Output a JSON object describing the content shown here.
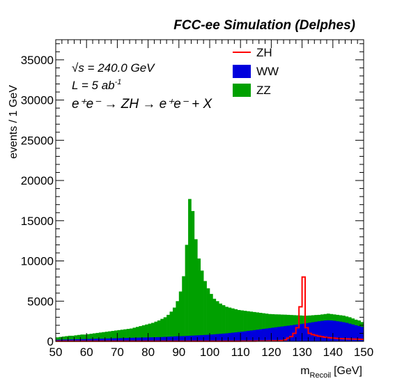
{
  "chart_data": {
    "type": "histogram",
    "title": "FCC-ee Simulation (Delphes)",
    "xlabel_main": "m",
    "xlabel_sub": "Recoil",
    "xlabel_unit": "[GeV]",
    "ylabel": "events / 1 GeV",
    "xlim": [
      50,
      150
    ],
    "ylim": [
      0,
      37500
    ],
    "x_ticks": [
      50,
      60,
      70,
      80,
      90,
      100,
      110,
      120,
      130,
      140,
      150
    ],
    "y_ticks": [
      0,
      5000,
      10000,
      15000,
      20000,
      25000,
      30000,
      35000
    ],
    "info": {
      "sqrt_s": "√s = 240.0 GeV",
      "lumi_base": "L = 5 ab",
      "lumi_exp": "-1",
      "process": "e⁺e⁻ → ZH → e⁺e⁻ + X"
    },
    "legend": {
      "placement": "top-right",
      "entries": [
        {
          "name": "ZH",
          "style": "line",
          "color": "#ff0000"
        },
        {
          "name": "WW",
          "style": "fill",
          "color": "#0000dd"
        },
        {
          "name": "ZZ",
          "style": "fill",
          "color": "#00a000"
        }
      ]
    },
    "colors": {
      "ZH": "#ff0000",
      "WW": "#0000dd",
      "ZZ": "#00a000"
    },
    "bin_width": 1,
    "bin_edges_start": 50,
    "series": [
      {
        "name": "WW",
        "stack": "WW",
        "values": [
          200,
          210,
          220,
          230,
          240,
          250,
          260,
          270,
          280,
          290,
          300,
          310,
          320,
          330,
          340,
          350,
          360,
          370,
          380,
          390,
          400,
          410,
          420,
          430,
          440,
          450,
          460,
          470,
          480,
          490,
          500,
          510,
          520,
          530,
          540,
          560,
          580,
          600,
          620,
          640,
          650,
          660,
          680,
          700,
          720,
          740,
          760,
          780,
          800,
          820,
          850,
          880,
          910,
          940,
          970,
          1000,
          1040,
          1080,
          1120,
          1160,
          1200,
          1250,
          1300,
          1350,
          1400,
          1450,
          1500,
          1550,
          1600,
          1650,
          1700,
          1750,
          1800,
          1850,
          1900,
          1950,
          2000,
          2050,
          2100,
          2150,
          2200,
          2260,
          2320,
          2380,
          2440,
          2500,
          2550,
          2600,
          2620,
          2600,
          2560,
          2500,
          2450,
          2380,
          2300,
          2200,
          2100,
          2000,
          1900,
          1800
        ]
      },
      {
        "name": "ZZ",
        "stack": "WW+ZZ total",
        "values": [
          500,
          550,
          600,
          650,
          700,
          700,
          750,
          800,
          850,
          850,
          900,
          950,
          1000,
          1050,
          1100,
          1150,
          1200,
          1250,
          1300,
          1350,
          1400,
          1450,
          1500,
          1550,
          1600,
          1700,
          1800,
          1900,
          2000,
          2100,
          2200,
          2300,
          2450,
          2600,
          2800,
          3000,
          3300,
          3700,
          4200,
          5000,
          6200,
          8100,
          12000,
          17700,
          16200,
          12700,
          10300,
          8800,
          7500,
          6600,
          5900,
          5300,
          5000,
          4700,
          4500,
          4300,
          4200,
          4100,
          4000,
          3900,
          3850,
          3800,
          3750,
          3700,
          3650,
          3600,
          3550,
          3500,
          3450,
          3400,
          3380,
          3360,
          3350,
          3330,
          3320,
          3300,
          3280,
          3260,
          3240,
          3220,
          3200,
          3200,
          3220,
          3250,
          3280,
          3300,
          3350,
          3400,
          3450,
          3400,
          3350,
          3300,
          3250,
          3200,
          3100,
          3000,
          2850,
          2700,
          2600,
          2400
        ]
      },
      {
        "name": "ZH",
        "stack": "none",
        "values": [
          20,
          20,
          20,
          20,
          20,
          20,
          20,
          20,
          20,
          20,
          20,
          20,
          20,
          20,
          20,
          20,
          20,
          20,
          20,
          20,
          20,
          20,
          20,
          20,
          20,
          20,
          20,
          20,
          20,
          20,
          20,
          20,
          20,
          20,
          20,
          20,
          20,
          20,
          20,
          20,
          20,
          20,
          20,
          20,
          20,
          20,
          20,
          20,
          20,
          20,
          20,
          20,
          20,
          20,
          20,
          20,
          20,
          20,
          20,
          20,
          30,
          30,
          30,
          30,
          30,
          40,
          40,
          40,
          40,
          50,
          60,
          70,
          80,
          100,
          200,
          400,
          600,
          1000,
          1700,
          4300,
          8000,
          1700,
          1000,
          850,
          750,
          650,
          580,
          520,
          470,
          430,
          400,
          370,
          350,
          330,
          310,
          300,
          290,
          280,
          270,
          260
        ]
      }
    ]
  }
}
